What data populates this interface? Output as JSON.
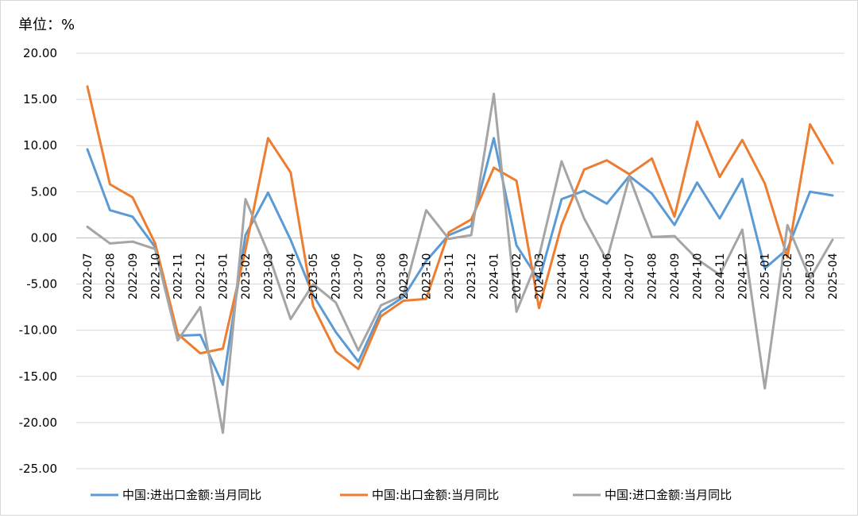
{
  "chart_data": {
    "type": "line",
    "unit_label": "单位：%",
    "x": [
      "2022-07",
      "2022-08",
      "2022-09",
      "2022-10",
      "2022-11",
      "2022-12",
      "2023-01",
      "2023-02",
      "2023-03",
      "2023-04",
      "2023-05",
      "2023-06",
      "2023-07",
      "2023-08",
      "2023-09",
      "2023-10",
      "2023-11",
      "2023-12",
      "2024-01",
      "2024-02",
      "2024-03",
      "2024-04",
      "2024-05",
      "2024-06",
      "2024-07",
      "2024-08",
      "2024-09",
      "2024-10",
      "2024-11",
      "2024-12",
      "2025-01",
      "2025-02",
      "2025-03",
      "2025-04"
    ],
    "ylim": [
      -25,
      20
    ],
    "yticks": [
      "20.00",
      "15.00",
      "10.00",
      "5.00",
      "0.00",
      "-5.00",
      "-10.00",
      "-15.00",
      "-20.00",
      "-25.00"
    ],
    "grid": true,
    "legend_position": "bottom",
    "series": [
      {
        "name": "中国:进出口金额:当月同比",
        "color": "#5b9bd5",
        "values": [
          9.6,
          3.0,
          2.3,
          -1.0,
          -10.6,
          -10.5,
          -15.9,
          0.3,
          4.9,
          -0.2,
          -6.2,
          -10.2,
          -13.4,
          -8.0,
          -6.4,
          -2.5,
          0.3,
          1.3,
          10.8,
          -0.8,
          -4.6,
          4.2,
          5.1,
          3.7,
          6.7,
          4.8,
          1.4,
          6.0,
          2.1,
          6.4,
          -3.3,
          -1.2,
          5.0,
          4.6
        ]
      },
      {
        "name": "中国:出口金额:当月同比",
        "color": "#ed7d31",
        "values": [
          16.4,
          5.8,
          4.4,
          -0.6,
          -10.4,
          -12.5,
          -12.0,
          -1.3,
          10.8,
          7.1,
          -7.4,
          -12.3,
          -14.2,
          -8.5,
          -6.8,
          -6.6,
          0.6,
          2.0,
          7.6,
          6.2,
          -7.6,
          1.4,
          7.4,
          8.4,
          6.9,
          8.6,
          2.3,
          12.6,
          6.6,
          10.6,
          5.9,
          -2.1,
          12.3,
          8.1
        ]
      },
      {
        "name": "中国:进口金额:当月同比",
        "color": "#a5a5a5",
        "values": [
          1.2,
          -0.6,
          -0.4,
          -1.2,
          -11.1,
          -7.5,
          -21.1,
          4.2,
          -1.6,
          -8.8,
          -5.0,
          -7.0,
          -12.2,
          -7.3,
          -6.2,
          3.0,
          -0.1,
          0.3,
          15.6,
          -8.0,
          -2.0,
          8.3,
          2.1,
          -2.4,
          6.6,
          0.1,
          0.2,
          -2.3,
          -4.0,
          0.9,
          -16.3,
          1.4,
          -4.4,
          -0.2
        ]
      }
    ]
  }
}
